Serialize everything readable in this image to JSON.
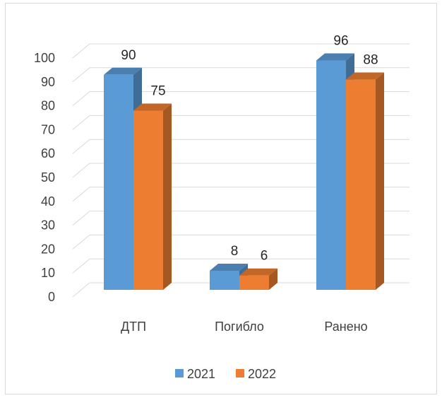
{
  "chart_data": {
    "type": "bar",
    "style": "3d-clustered-column",
    "categories": [
      "ДТП",
      "Погибло",
      "Ранено"
    ],
    "series": [
      {
        "name": "2021",
        "values": [
          90,
          8,
          96
        ],
        "color": "#5b9bd5"
      },
      {
        "name": "2022",
        "values": [
          75,
          6,
          88
        ],
        "color": "#ed7d31"
      }
    ],
    "ylim": [
      0,
      100
    ],
    "yticks": [
      0,
      10,
      20,
      30,
      40,
      50,
      60,
      70,
      80,
      90,
      100
    ],
    "grid": true,
    "legend": "bottom",
    "title": "",
    "xlabel": "",
    "ylabel": ""
  }
}
